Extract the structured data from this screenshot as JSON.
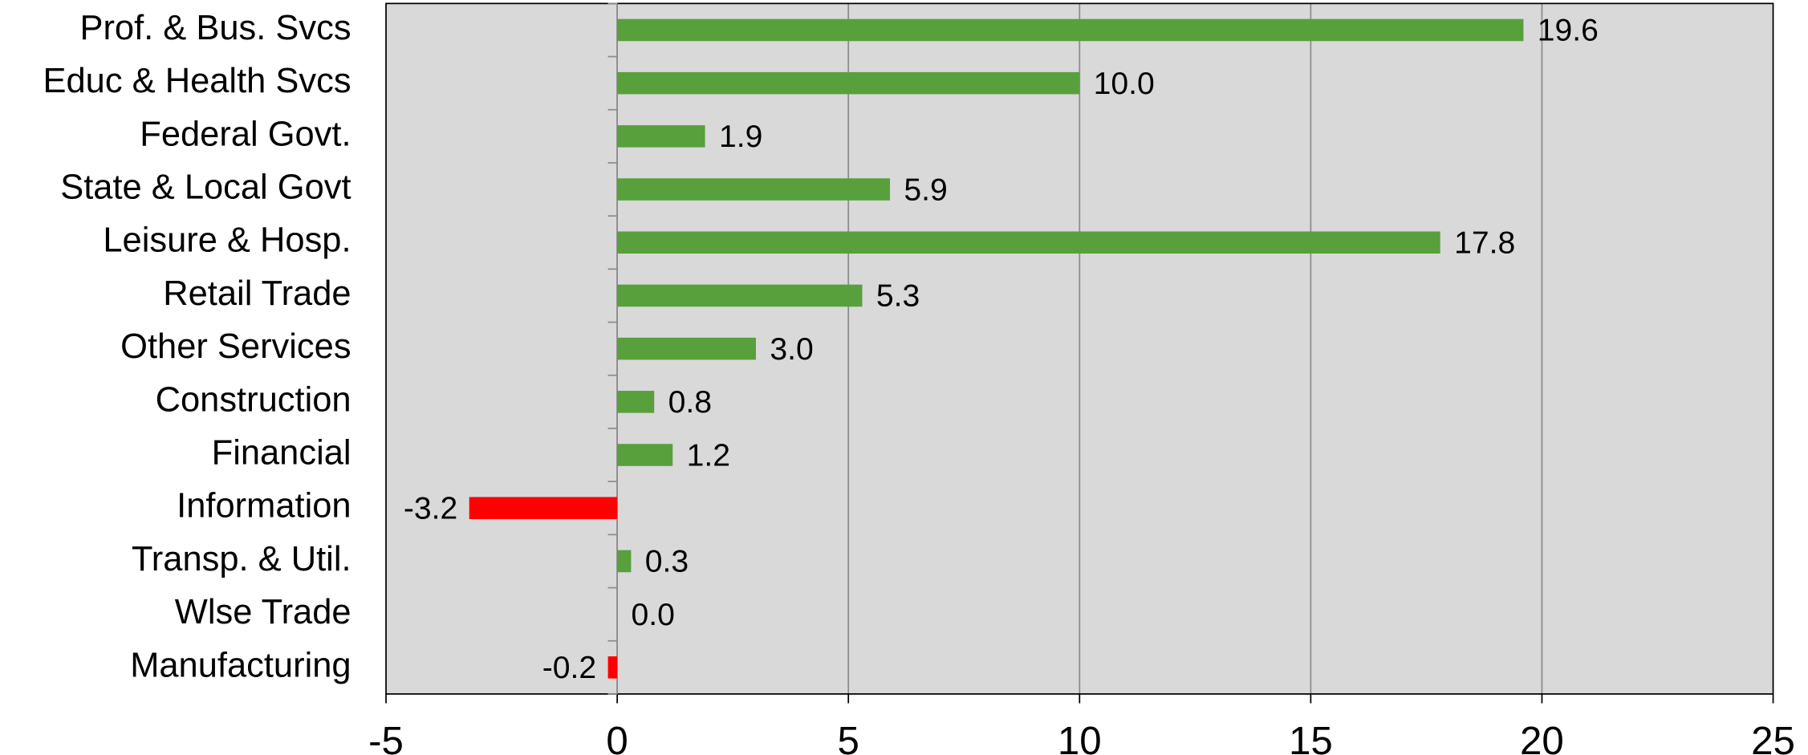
{
  "chart_data": {
    "type": "bar",
    "orientation": "horizontal",
    "categories": [
      "Prof. & Bus. Svcs",
      "Educ & Health Svcs",
      "Federal Govt.",
      "State & Local Govt",
      "Leisure & Hosp.",
      "Retail Trade",
      "Other Services",
      "Construction",
      "Financial",
      "Information",
      "Transp. & Util.",
      "Wlse Trade",
      "Manufacturing"
    ],
    "values": [
      19.6,
      10.0,
      1.9,
      5.9,
      17.8,
      5.3,
      3.0,
      0.8,
      1.2,
      -3.2,
      0.3,
      0.0,
      -0.2
    ],
    "value_labels": [
      "19.6",
      "10.0",
      "1.9",
      "5.9",
      "17.8",
      "5.3",
      "3.0",
      "0.8",
      "1.2",
      "-3.2",
      "0.3",
      "0.0",
      "-0.2"
    ],
    "color": "#58a03c",
    "negative_color": "#ff0000",
    "xlim": [
      -5,
      25
    ],
    "xticks": [
      -5,
      0,
      5,
      10,
      15,
      20,
      25
    ],
    "grid": true
  }
}
